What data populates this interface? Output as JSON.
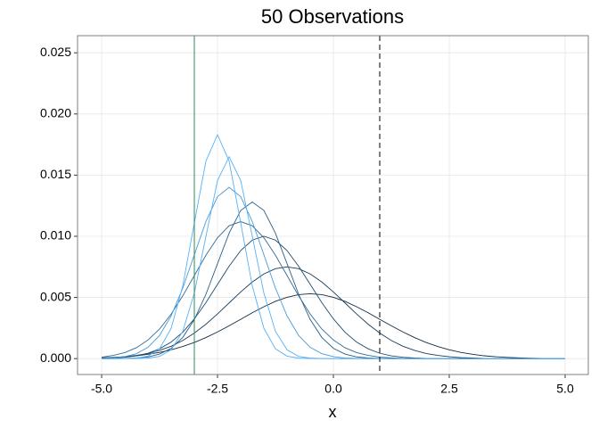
{
  "chart_data": {
    "type": "line",
    "title": "50 Observations",
    "x_label": "x",
    "xlim": [
      -5.52,
      5.5
    ],
    "ylim": [
      -0.0013,
      0.0264
    ],
    "xticks": [
      {
        "value": -5,
        "label": "-5.0"
      },
      -2.5,
      {
        "value": 0,
        "label": "0.0"
      },
      2.5,
      {
        "value": 5,
        "label": "5.0"
      }
    ],
    "yticks": [
      {
        "value": 0,
        "label": "0.000"
      },
      {
        "value": 0.005,
        "label": "0.005"
      },
      {
        "value": 0.01,
        "label": "0.010"
      },
      {
        "value": 0.015,
        "label": "0.015"
      },
      {
        "value": 0.02,
        "label": "0.020"
      },
      {
        "value": 0.025,
        "label": "0.025"
      }
    ],
    "grid": true,
    "vlines": [
      {
        "x": -3,
        "color": "#2e8b57",
        "dashed": false
      },
      {
        "x": 1,
        "color": "#000000",
        "dashed": true
      }
    ],
    "x": [
      -5,
      -4.75,
      -4.5,
      -4.25,
      -4,
      -3.75,
      -3.5,
      -3.25,
      -3,
      -2.75,
      -2.5,
      -2.25,
      -2,
      -1.75,
      -1.5,
      -1.25,
      -1,
      -0.75,
      -0.5,
      -0.25,
      0,
      0.25,
      0.5,
      0.75,
      1,
      1.25,
      1.5,
      1.75,
      2,
      2.25,
      2.5,
      2.75,
      3,
      3.25,
      3.5,
      3.75,
      4,
      4.25,
      4.5,
      4.75,
      5
    ],
    "series": [
      {
        "color": "#132B43",
        "values": [
          6e-05,
          0.0001,
          0.00015,
          0.00023,
          0.00035,
          0.00051,
          0.00072,
          0.00099,
          0.00132,
          0.00172,
          0.00218,
          0.00268,
          0.00321,
          0.00375,
          0.00424,
          0.00468,
          0.00501,
          0.00523,
          0.0053,
          0.00523,
          0.00501,
          0.00468,
          0.00424,
          0.00375,
          0.00321,
          0.00268,
          0.00218,
          0.00172,
          0.00132,
          0.00099,
          0.00072,
          0.00051,
          0.00035,
          0.00023,
          0.00015,
          0.0001,
          6e-05,
          3e-05,
          2e-05,
          1e-05,
          1e-05
        ]
      },
      {
        "color": "#1a3c57",
        "values": [
          5e-05,
          8e-05,
          0.00015,
          0.00026,
          0.00042,
          0.00067,
          0.00101,
          0.00148,
          0.00209,
          0.00281,
          0.00365,
          0.00455,
          0.00545,
          0.00626,
          0.00692,
          0.00735,
          0.0075,
          0.00735,
          0.00692,
          0.00626,
          0.00545,
          0.00455,
          0.00365,
          0.00281,
          0.00209,
          0.00148,
          0.00101,
          0.00067,
          0.00042,
          0.00026,
          0.00015,
          8e-05,
          5e-05,
          2e-05,
          1e-05,
          1e-05,
          0,
          0,
          0,
          0,
          0
        ]
      },
      {
        "color": "#214b6c",
        "values": [
          2e-05,
          5e-05,
          0.00011,
          0.00023,
          0.00044,
          0.0008,
          0.00135,
          0.00216,
          0.00325,
          0.00458,
          0.00607,
          0.00755,
          0.00883,
          0.00969,
          0.01,
          0.00969,
          0.00883,
          0.00755,
          0.00607,
          0.00458,
          0.00325,
          0.00216,
          0.00135,
          0.0008,
          0.00044,
          0.00023,
          0.00011,
          5e-05,
          2e-05,
          1e-05,
          0,
          0,
          0,
          0,
          0,
          0,
          0,
          0,
          0,
          0,
          0
        ]
      },
      {
        "color": "#2a5f88",
        "values": [
          0,
          0,
          2e-05,
          5e-05,
          0.00014,
          0.00037,
          0.00084,
          0.00173,
          0.00319,
          0.00526,
          0.00776,
          0.01025,
          0.01211,
          0.0128,
          0.01211,
          0.01025,
          0.00776,
          0.00526,
          0.00319,
          0.00173,
          0.00084,
          0.00037,
          0.00014,
          5e-05,
          2e-05,
          0,
          0,
          0,
          0,
          0,
          0,
          0,
          0,
          0,
          0,
          0,
          0,
          0,
          0,
          0,
          0
        ]
      },
      {
        "color": "#2f6a97",
        "values": [
          0.00012,
          0.00026,
          0.00049,
          0.00089,
          0.00152,
          0.00242,
          0.00364,
          0.00513,
          0.00679,
          0.00845,
          0.00988,
          0.01086,
          0.0112,
          0.01086,
          0.00988,
          0.00845,
          0.00679,
          0.00513,
          0.00364,
          0.00242,
          0.00152,
          0.00089,
          0.00049,
          0.00026,
          0.00012,
          6e-05,
          2e-05,
          1e-05,
          0,
          0,
          0,
          0,
          0,
          0,
          0,
          0,
          0,
          0,
          0,
          0,
          0
        ]
      },
      {
        "color": "#4b9ad6",
        "values": [
          2e-05,
          5e-05,
          0.00016,
          0.0004,
          0.00092,
          0.00189,
          0.00349,
          0.00576,
          0.00849,
          0.01121,
          0.01324,
          0.014,
          0.01324,
          0.01121,
          0.00849,
          0.00576,
          0.00349,
          0.00189,
          0.00092,
          0.0004,
          0.00016,
          5e-05,
          2e-05,
          0,
          0,
          0,
          0,
          0,
          0,
          0,
          0,
          0,
          0,
          0,
          0,
          0,
          0,
          0,
          0,
          0,
          0
        ]
      },
      {
        "color": "#56B1F7",
        "values": [
          0,
          0,
          0,
          1e-05,
          4e-05,
          0.00018,
          0.00072,
          0.00223,
          0.00536,
          0.01,
          0.01456,
          0.0165,
          0.01456,
          0.01,
          0.00536,
          0.00223,
          0.00072,
          0.00018,
          4e-05,
          1e-05,
          0,
          0,
          0,
          0,
          0,
          0,
          0,
          0,
          0,
          0,
          0,
          0,
          0,
          0,
          0,
          0,
          0,
          0,
          0,
          0,
          0
        ]
      },
      {
        "color": "#56B1F7",
        "values": [
          0,
          0,
          1e-05,
          4e-05,
          0.0002,
          0.0008,
          0.00248,
          0.00594,
          0.0111,
          0.01615,
          0.0183,
          0.01615,
          0.0111,
          0.00594,
          0.00248,
          0.0008,
          0.0002,
          4e-05,
          1e-05,
          0,
          0,
          0,
          0,
          0,
          0,
          0,
          0,
          0,
          0,
          0,
          0,
          0,
          0,
          0,
          0,
          0,
          0,
          0,
          0,
          0,
          0
        ]
      }
    ]
  }
}
